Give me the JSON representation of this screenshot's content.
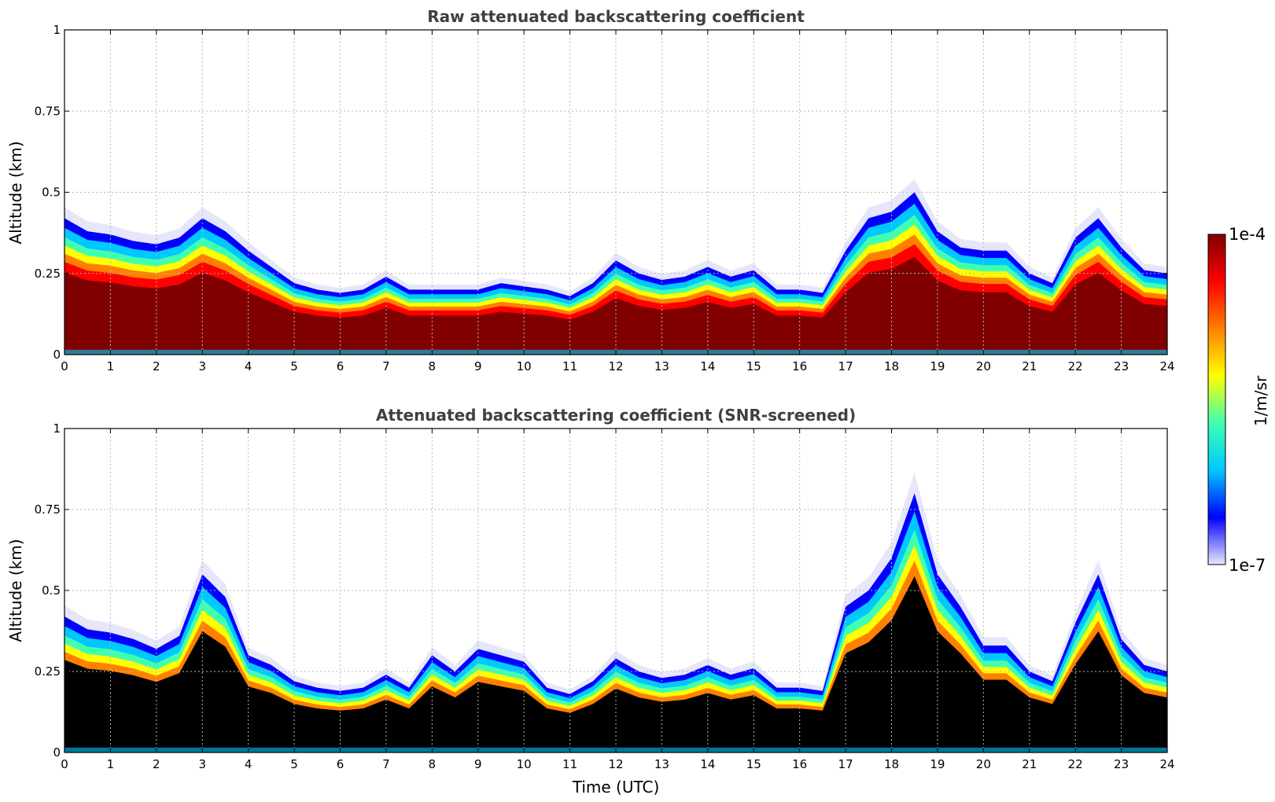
{
  "chart_data": [
    {
      "type": "heatmap",
      "title": "Raw attenuated backscattering coefficient",
      "xlabel": "",
      "ylabel": "Altitude (km)",
      "xlim": [
        0,
        24
      ],
      "ylim": [
        0,
        1
      ],
      "xticks": [
        "0",
        "1",
        "2",
        "3",
        "4",
        "5",
        "6",
        "7",
        "8",
        "9",
        "10",
        "11",
        "12",
        "13",
        "14",
        "15",
        "16",
        "17",
        "18",
        "19",
        "20",
        "21",
        "22",
        "23",
        "24"
      ],
      "yticks": [
        "0",
        "0.25",
        "0.5",
        "0.75",
        "1"
      ],
      "grid": true,
      "screened": false,
      "layer_top_km": {
        "time_utc": [
          0,
          0.5,
          1,
          1.5,
          2,
          2.5,
          3,
          3.5,
          4,
          4.5,
          5,
          5.5,
          6,
          6.5,
          7,
          7.5,
          8,
          8.5,
          9,
          9.5,
          10,
          10.5,
          11,
          11.5,
          12,
          12.5,
          13,
          13.5,
          14,
          14.5,
          15,
          15.5,
          16,
          16.5,
          17,
          17.5,
          18,
          18.5,
          19,
          19.5,
          20,
          20.5,
          21,
          21.5,
          22,
          22.5,
          23,
          23.5,
          24
        ],
        "altitude_km": [
          0.42,
          0.38,
          0.37,
          0.35,
          0.34,
          0.36,
          0.42,
          0.38,
          0.32,
          0.27,
          0.22,
          0.2,
          0.19,
          0.2,
          0.24,
          0.2,
          0.2,
          0.2,
          0.2,
          0.22,
          0.21,
          0.2,
          0.18,
          0.22,
          0.29,
          0.25,
          0.23,
          0.24,
          0.27,
          0.24,
          0.26,
          0.2,
          0.2,
          0.19,
          0.32,
          0.42,
          0.44,
          0.5,
          0.38,
          0.33,
          0.32,
          0.32,
          0.25,
          0.22,
          0.36,
          0.42,
          0.33,
          0.26,
          0.25
        ]
      }
    },
    {
      "type": "heatmap",
      "title": "Attenuated backscattering coefficient (SNR-screened)",
      "xlabel": "Time (UTC)",
      "ylabel": "Altitude (km)",
      "xlim": [
        0,
        24
      ],
      "ylim": [
        0,
        1
      ],
      "xticks": [
        "0",
        "1",
        "2",
        "3",
        "4",
        "5",
        "6",
        "7",
        "8",
        "9",
        "10",
        "11",
        "12",
        "13",
        "14",
        "15",
        "16",
        "17",
        "18",
        "19",
        "20",
        "21",
        "22",
        "23",
        "24"
      ],
      "yticks": [
        "0",
        "0.25",
        "0.5",
        "0.75",
        "1"
      ],
      "grid": true,
      "screened": true,
      "layer_top_km": {
        "time_utc": [
          0,
          0.5,
          1,
          1.5,
          2,
          2.5,
          3,
          3.5,
          4,
          4.5,
          5,
          5.5,
          6,
          6.5,
          7,
          7.5,
          8,
          8.5,
          9,
          9.5,
          10,
          10.5,
          11,
          11.5,
          12,
          12.5,
          13,
          13.5,
          14,
          14.5,
          15,
          15.5,
          16,
          16.5,
          17,
          17.5,
          18,
          18.5,
          19,
          19.5,
          20,
          20.5,
          21,
          21.5,
          22,
          22.5,
          23,
          23.5,
          24
        ],
        "altitude_km": [
          0.42,
          0.38,
          0.37,
          0.35,
          0.32,
          0.36,
          0.55,
          0.48,
          0.3,
          0.27,
          0.22,
          0.2,
          0.19,
          0.2,
          0.24,
          0.2,
          0.3,
          0.25,
          0.32,
          0.3,
          0.28,
          0.2,
          0.18,
          0.22,
          0.29,
          0.25,
          0.23,
          0.24,
          0.27,
          0.24,
          0.26,
          0.2,
          0.2,
          0.19,
          0.45,
          0.5,
          0.6,
          0.8,
          0.55,
          0.45,
          0.33,
          0.33,
          0.25,
          0.22,
          0.4,
          0.55,
          0.35,
          0.27,
          0.25
        ]
      }
    }
  ],
  "colorbar": {
    "label": "1/m/sr",
    "max_label": "1e-4",
    "min_label": "1e-7",
    "range": [
      1e-07,
      0.0001
    ],
    "scale": "log",
    "colormap": [
      "#e8e8fb",
      "#0000ff",
      "#00c8ff",
      "#40ffb0",
      "#ffff00",
      "#ff8000",
      "#ff0000",
      "#800000"
    ]
  }
}
